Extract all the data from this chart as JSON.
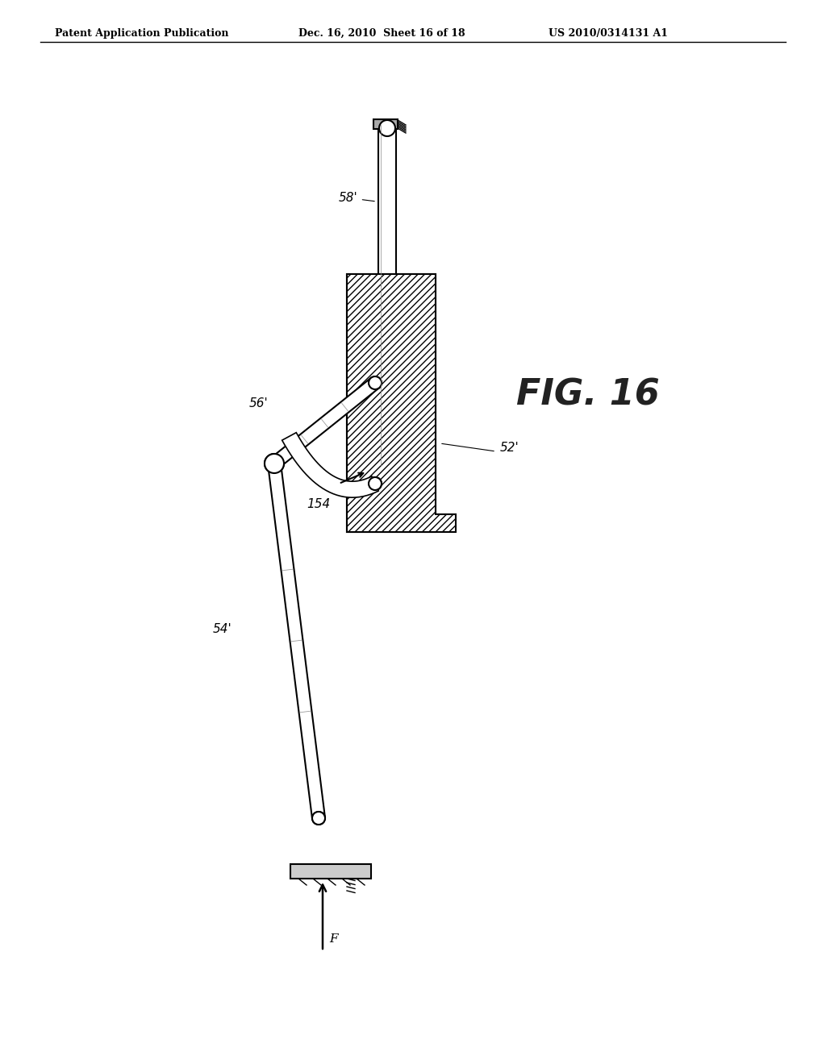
{
  "title_left": "Patent Application Publication",
  "title_mid": "Dec. 16, 2010  Sheet 16 of 18",
  "title_right": "US 2010/0314131 A1",
  "fig_label": "FIG. 16",
  "background": "#ffffff",
  "line_color": "#000000",
  "hatch_color": "#000000",
  "labels": {
    "58prime": "58'",
    "56prime": "56'",
    "54prime": "54'",
    "52prime": "52'",
    "154": "154",
    "F": "F"
  }
}
